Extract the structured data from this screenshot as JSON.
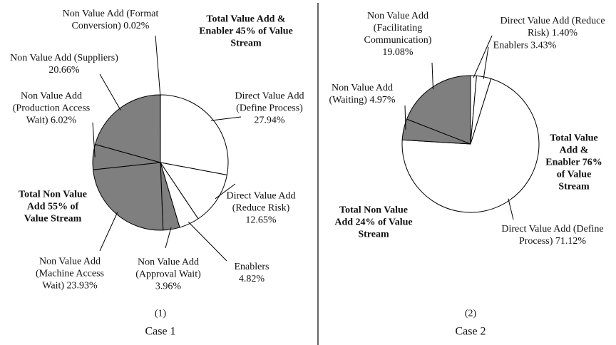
{
  "chart_data": [
    {
      "type": "pie",
      "label": "(1)",
      "title": "Case 1",
      "annotations": [
        "Total Value Add & Enabler 45% of Value Stream",
        "Total Non Value Add 55% of Value Stream"
      ],
      "categories": [
        "Direct Value Add (Define Process)",
        "Direct Value Add (Reduce Risk)",
        "Enablers",
        "Non Value Add (Approval Wait)",
        "Non Value Add (Machine Access Wait)",
        "Non Value Add (Production Access Wait)",
        "Non Value Add (Suppliers)",
        "Non Value Add (Format Conversion)"
      ],
      "values": [
        27.94,
        12.65,
        4.82,
        3.96,
        23.93,
        6.02,
        20.66,
        0.02
      ],
      "value_labels": [
        "27.94%",
        "12.65%",
        "4.82%",
        "3.96%",
        "23.93%",
        "6.02%",
        "20.66%",
        "0.02%"
      ],
      "colors": [
        "#ffffff",
        "#ffffff",
        "#ffffff",
        "#7f7f7f",
        "#7f7f7f",
        "#7f7f7f",
        "#7f7f7f",
        "#7f7f7f"
      ]
    },
    {
      "type": "pie",
      "label": "(2)",
      "title": "Case 2",
      "annotations": [
        "Total Value Add & Enabler 76% of Value Stream",
        "Total Non Value Add 24% of Value Stream"
      ],
      "categories": [
        "Direct Value Add (Reduce Risk)",
        "Enablers",
        "Direct Value Add (Define Process)",
        "Non Value Add (Waiting)",
        "Non Value Add (Facilitating Communication)"
      ],
      "values": [
        1.4,
        3.43,
        71.12,
        4.97,
        19.08
      ],
      "value_labels": [
        "1.40%",
        "3.43%",
        "71.12%",
        "4.97%",
        "19.08%"
      ],
      "colors": [
        "#ffffff",
        "#ffffff",
        "#ffffff",
        "#7f7f7f",
        "#7f7f7f"
      ]
    }
  ]
}
